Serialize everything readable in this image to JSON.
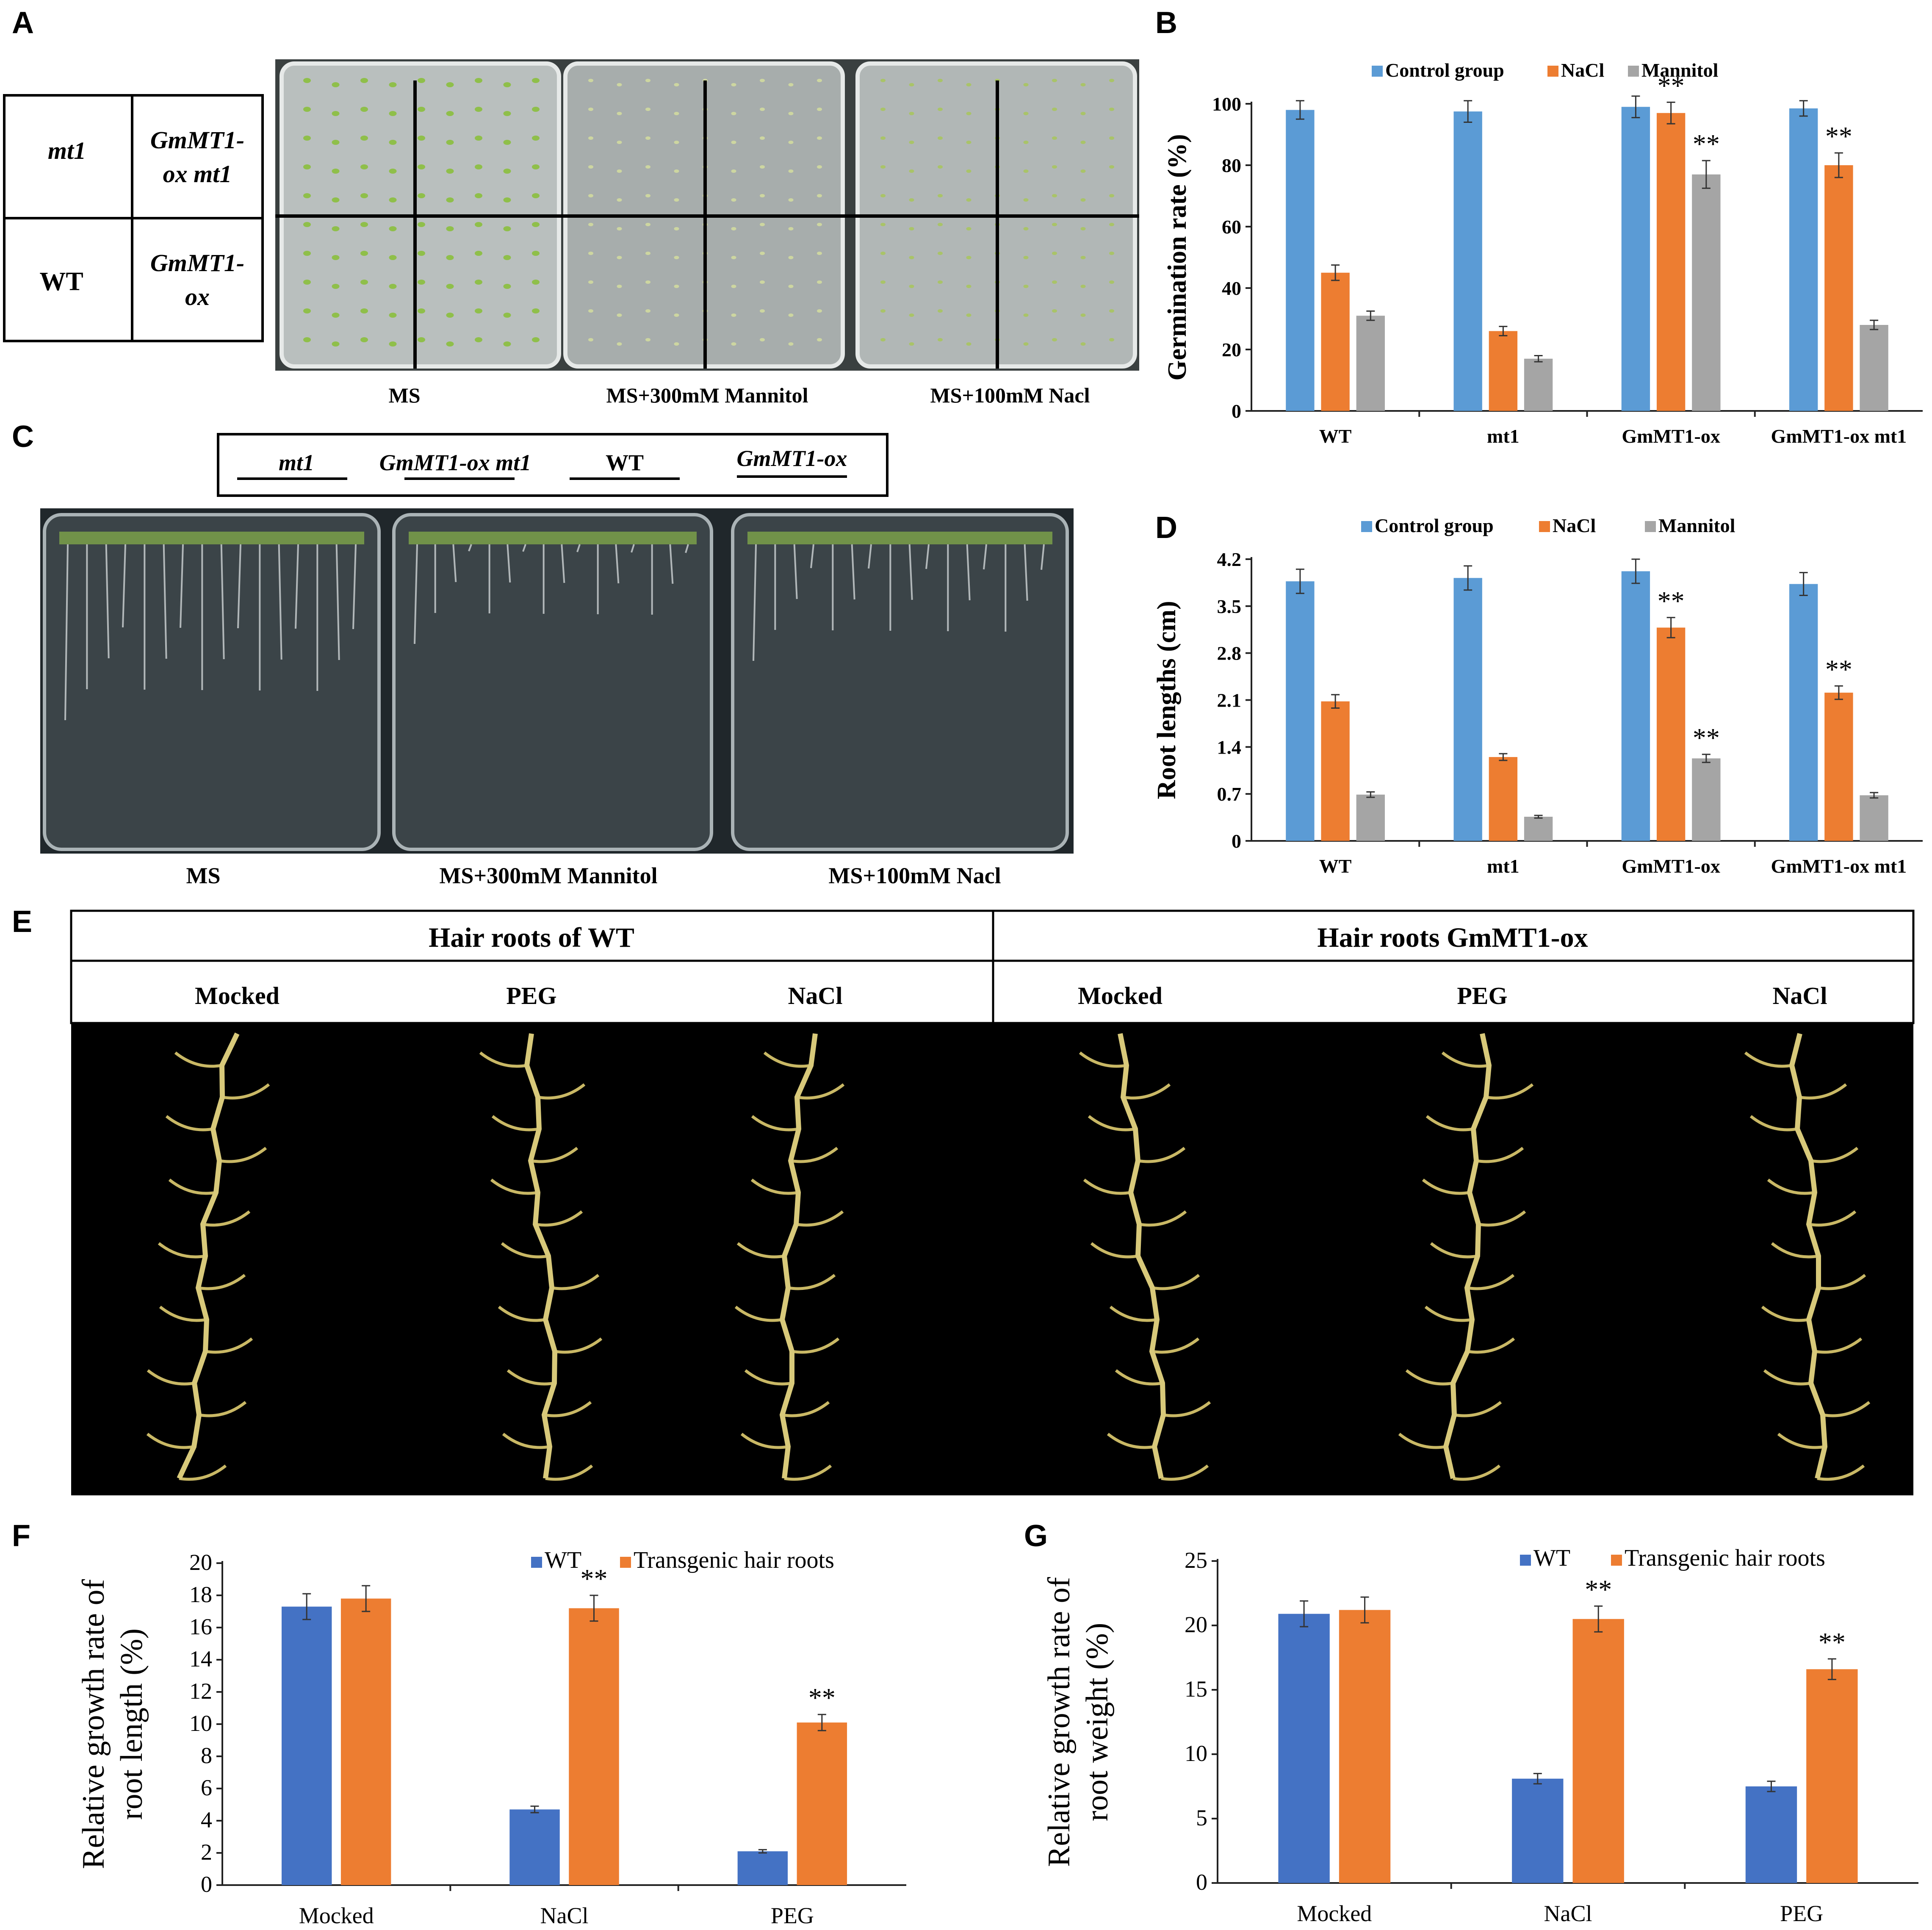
{
  "panel_letters": {
    "a": "A",
    "b": "B",
    "c": "C",
    "d": "D",
    "e": "E",
    "f": "F",
    "g": "G"
  },
  "panel_a": {
    "legend_cells": [
      "mt1",
      "GmMT1-\nox mt1",
      "WT",
      "GmMT1-\nox"
    ],
    "plate_labels": [
      "MS",
      "MS+300mM Mannitol",
      "MS+100mM Nacl"
    ]
  },
  "panel_c": {
    "legend_labels": [
      "mt1",
      "GmMT1-ox mt1",
      "WT",
      "GmMT1-ox"
    ],
    "plate_labels": [
      "MS",
      "MS+300mM Mannitol",
      "MS+100mM Nacl"
    ]
  },
  "panel_e": {
    "group_headers": [
      "Hair roots of WT",
      "Hair roots GmMT1-ox"
    ],
    "treatment_labels": [
      "Mocked",
      "PEG",
      "NaCl",
      "Mocked",
      "PEG",
      "NaCl"
    ]
  },
  "colors": {
    "blue": "#5B9BD5",
    "orange": "#ED7D31",
    "gray": "#A5A5A5",
    "blue_dark": "#4472C4",
    "plate_bg": "#2a2f33",
    "root_bg": "#000000"
  },
  "chart_data": [
    {
      "id": "B",
      "type": "bar",
      "ylabel": "Germination rate (%)",
      "xlabel": "",
      "categories": [
        "WT",
        "mt1",
        "GmMT1-ox",
        "GmMT1-ox mt1"
      ],
      "series": [
        {
          "name": "Control group",
          "values": [
            98,
            97.5,
            99,
            98.5
          ],
          "errors": [
            3,
            3.5,
            3.5,
            2.5
          ],
          "sig": [
            "",
            "",
            "",
            ""
          ]
        },
        {
          "name": "NaCl",
          "values": [
            45,
            26,
            97,
            80
          ],
          "errors": [
            2.5,
            1.5,
            3.5,
            4
          ],
          "sig": [
            "",
            "",
            "**",
            "**"
          ]
        },
        {
          "name": "Mannitol",
          "values": [
            31,
            17,
            77,
            28
          ],
          "errors": [
            1.5,
            1,
            4.5,
            1.5
          ],
          "sig": [
            "",
            "",
            "**",
            ""
          ]
        }
      ],
      "ylim": [
        0,
        100
      ],
      "yticks": [
        "0",
        "20",
        "40",
        "60",
        "80",
        "100"
      ],
      "legend": "top"
    },
    {
      "id": "D",
      "type": "bar",
      "ylabel": "Root lengths (cm)",
      "xlabel": "",
      "categories": [
        "WT",
        "mt1",
        "GmMT1-ox",
        "GmMT1-ox mt1"
      ],
      "series": [
        {
          "name": "Control group",
          "values": [
            3.87,
            3.92,
            4.02,
            3.83
          ],
          "errors": [
            0.18,
            0.18,
            0.18,
            0.17
          ],
          "sig": [
            "",
            "",
            "",
            ""
          ]
        },
        {
          "name": "NaCl",
          "values": [
            2.08,
            1.25,
            3.18,
            2.21
          ],
          "errors": [
            0.1,
            0.05,
            0.15,
            0.1
          ],
          "sig": [
            "",
            "",
            "**",
            "**"
          ]
        },
        {
          "name": "Mannitol",
          "values": [
            0.69,
            0.36,
            1.23,
            0.68
          ],
          "errors": [
            0.04,
            0.02,
            0.06,
            0.04
          ],
          "sig": [
            "",
            "",
            "**",
            ""
          ]
        }
      ],
      "ylim": [
        0,
        4.2
      ],
      "yticks": [
        "0",
        "0.7",
        "1.4",
        "2.1",
        "2.8",
        "3.5",
        "4.2"
      ],
      "legend": "top"
    },
    {
      "id": "F",
      "type": "bar",
      "ylabel": "Relative growth rate of root length (%)",
      "xlabel": "",
      "categories": [
        "Mocked",
        "NaCl",
        "PEG"
      ],
      "series": [
        {
          "name": "WT",
          "values": [
            17.3,
            4.7,
            2.1
          ],
          "errors": [
            0.8,
            0.2,
            0.1
          ],
          "sig": [
            "",
            "",
            ""
          ]
        },
        {
          "name": "Transgenic hair roots",
          "values": [
            17.8,
            17.2,
            10.1
          ],
          "errors": [
            0.8,
            0.8,
            0.5
          ],
          "sig": [
            "",
            "**",
            "**"
          ]
        }
      ],
      "ylim": [
        0,
        20
      ],
      "yticks": [
        "0",
        "2",
        "4",
        "6",
        "8",
        "10",
        "12",
        "14",
        "16",
        "18",
        "20"
      ],
      "legend": "top-right"
    },
    {
      "id": "G",
      "type": "bar",
      "ylabel": "Relative growth rate of root weight (%)",
      "xlabel": "",
      "categories": [
        "Mocked",
        "NaCl",
        "PEG"
      ],
      "series": [
        {
          "name": "WT",
          "values": [
            20.9,
            8.1,
            7.5
          ],
          "errors": [
            1.0,
            0.4,
            0.4
          ],
          "sig": [
            "",
            "",
            ""
          ]
        },
        {
          "name": "Transgenic hair roots",
          "values": [
            21.2,
            20.5,
            16.6
          ],
          "errors": [
            1.0,
            1.0,
            0.8
          ],
          "sig": [
            "",
            "**",
            "**"
          ]
        }
      ],
      "ylim": [
        0,
        25
      ],
      "yticks": [
        "0",
        "5",
        "10",
        "15",
        "20",
        "25"
      ],
      "legend": "top-right"
    }
  ]
}
